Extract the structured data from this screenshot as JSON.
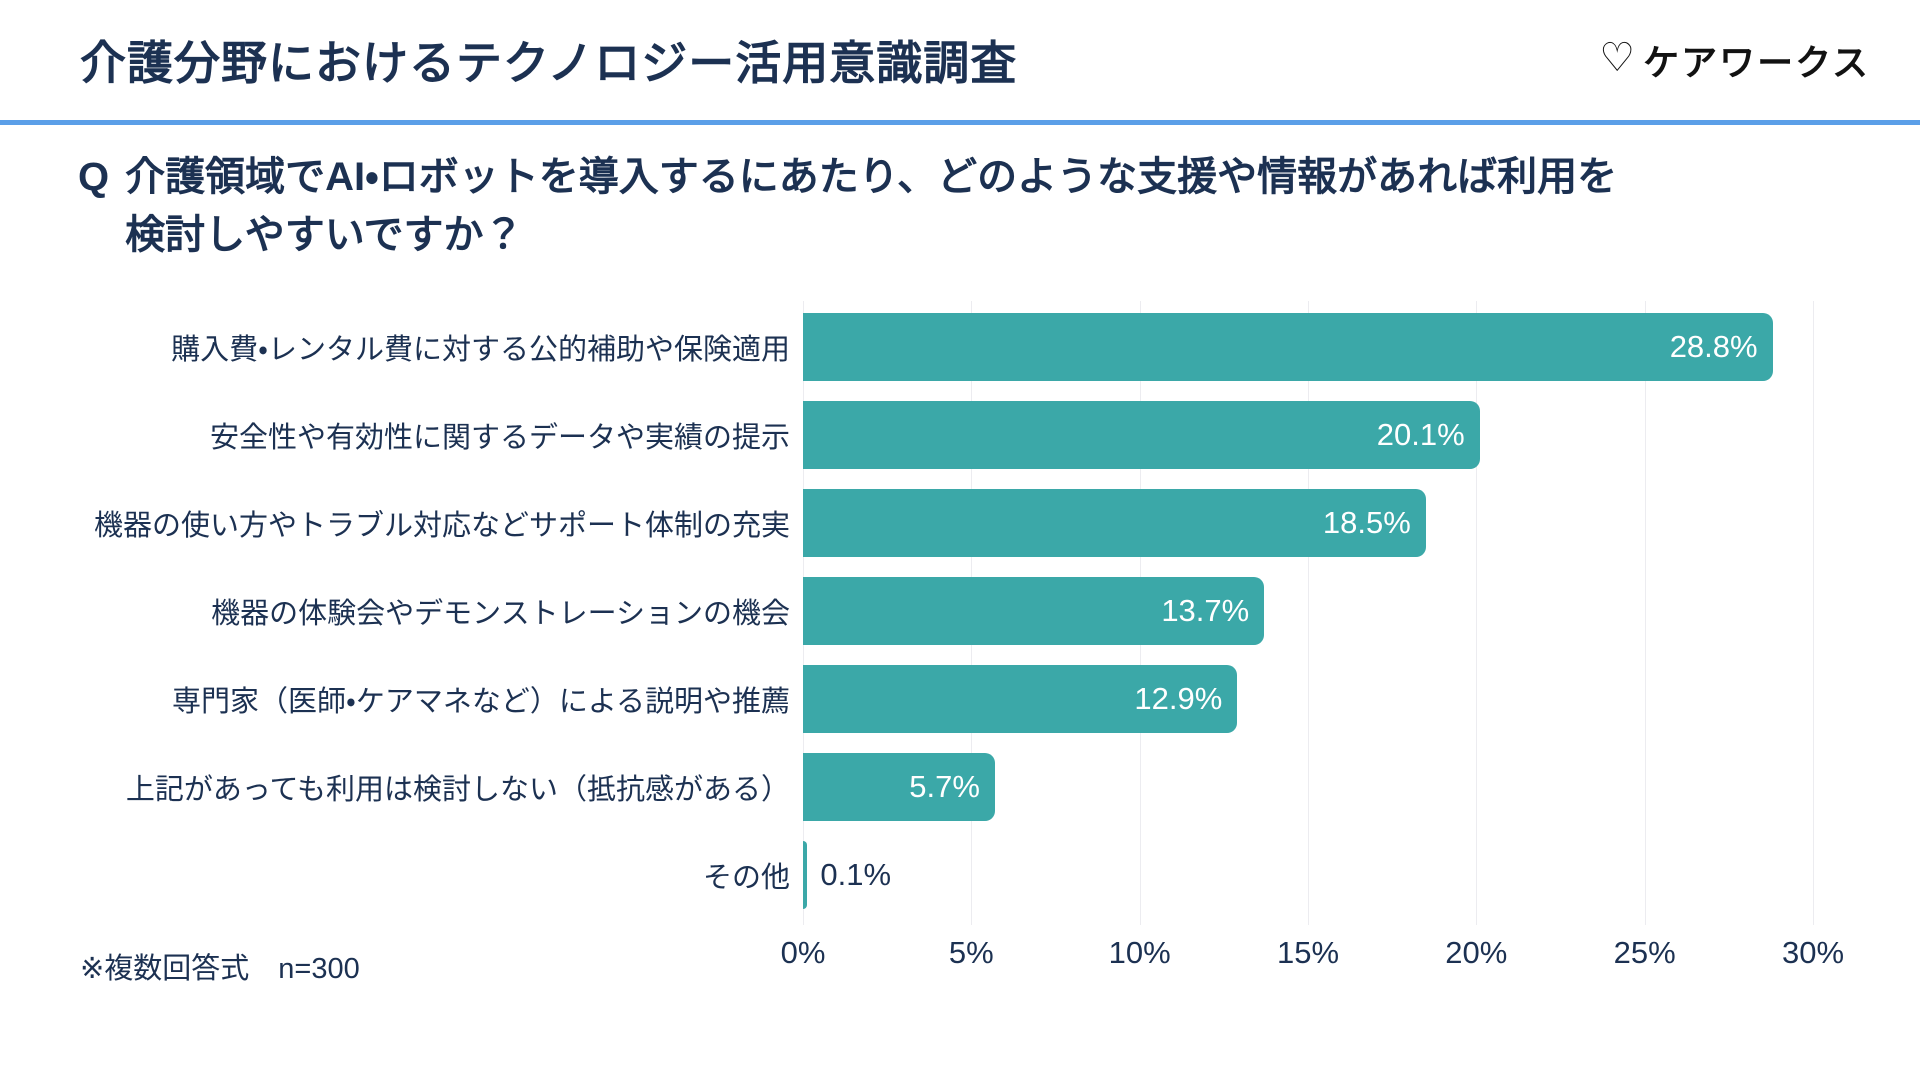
{
  "header": {
    "title": "介護分野におけるテクノロジー活用意識調査",
    "logo_icon": "♡",
    "logo_text": "ケアワークス"
  },
  "question": {
    "prefix": "Q",
    "line1": "介護領域でAI・ロボットを導入するにあたり、どのような支援や情報があれば利用を",
    "line2": "検討しやすいですか？"
  },
  "chart_data": {
    "type": "bar",
    "orientation": "horizontal",
    "categories": [
      "購入費・レンタル費に対する公的補助や保険適用",
      "安全性や有効性に関するデータや実績の提示",
      "機器の使い方やトラブル対応などサポート体制の充実",
      "機器の体験会やデモンストレーションの機会",
      "専門家（医師・ケアマネなど）による説明や推薦",
      "上記があっても利用は検討しない（抵抗感がある）",
      "その他"
    ],
    "values": [
      28.8,
      20.1,
      18.5,
      13.7,
      12.9,
      5.7,
      0.1
    ],
    "value_labels": [
      "28.8%",
      "20.1%",
      "18.5%",
      "13.7%",
      "12.9%",
      "5.7%",
      "0.1%"
    ],
    "x_tick_values": [
      0,
      5,
      10,
      15,
      20,
      25,
      30
    ],
    "x_tick_labels": [
      "0%",
      "5%",
      "10%",
      "15%",
      "20%",
      "25%",
      "30%"
    ],
    "xlim": [
      0,
      30
    ],
    "grid": true,
    "inside_label_min": 3,
    "bar_color": "#3ba8a8",
    "gridline_color": "#ececf0",
    "text_color": "#1c3152"
  },
  "theme": {
    "accent_teal": "#3ba8a8",
    "navy_text": "#1c3152",
    "divider_blue": "#5b9fe8",
    "background": "#ffffff",
    "logo_black": "#121212"
  },
  "footnote": "※複数回答式　n=300"
}
